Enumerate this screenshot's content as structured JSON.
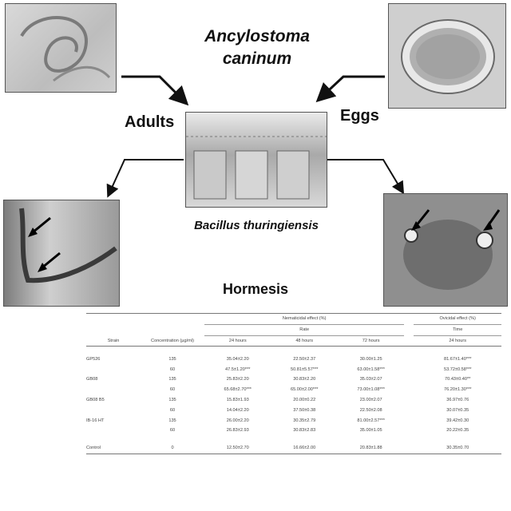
{
  "title": {
    "line1": "Ancylostoma",
    "line2": "caninum"
  },
  "labels": {
    "adults": "Adults",
    "eggs": "Eggs",
    "bacillus": "Bacillus thuringiensis",
    "hormesis": "Hormesis"
  },
  "table": {
    "header_group_nematicidal": "Nematicidal effect (%)",
    "header_group_ovicidal": "Ovicidal effect (%)",
    "header_sub_nematicidal": "Rate",
    "header_sub_ovicidal": "Time",
    "col_strain": "Strain",
    "col_concentration": "Concentration (µg/ml)",
    "col_24": "24 hours",
    "col_48": "48 hours",
    "col_72": "72 hours",
    "col_ovi_24": "24 hours",
    "rows": [
      {
        "strain": "GP526",
        "conc": "135",
        "h24": "35.04±2.20",
        "h48": "22.50±2.37",
        "h72": "30.00±1.25",
        "ovi": "81.67±1.40***"
      },
      {
        "strain": "",
        "conc": "60",
        "h24": "47.5±1.20***",
        "h48": "50.81±5.57***",
        "h72": "63.00±1.58***",
        "ovi": "53.72±0.58***"
      },
      {
        "strain": "GB08",
        "conc": "135",
        "h24": "25.83±2.20",
        "h48": "30.83±2.20",
        "h72": "35.03±2.07",
        "ovi": "70.43±0.40**"
      },
      {
        "strain": "",
        "conc": "60",
        "h24": "65.68±2.70***",
        "h48": "65.00±2.00***",
        "h72": "73.00±1.08***",
        "ovi": "76.20±1.30***"
      },
      {
        "strain": "GB08 B5",
        "conc": "135",
        "h24": "15.83±1.93",
        "h48": "20.00±0.22",
        "h72": "23.00±2.07",
        "ovi": "36.97±0.76"
      },
      {
        "strain": "",
        "conc": "60",
        "h24": "14.04±2.20",
        "h48": "37.50±0.38",
        "h72": "22.50±2.08",
        "ovi": "30.07±0.35"
      },
      {
        "strain": "IB-16 HT",
        "conc": "135",
        "h24": "26.00±2.20",
        "h48": "30.35±2.79",
        "h72": "81.00±2.57***",
        "ovi": "39.42±0.30"
      },
      {
        "strain": "",
        "conc": "60",
        "h24": "26.83±2.93",
        "h48": "30.83±2.83",
        "h72": "35.00±1.05",
        "ovi": "20.22±0.35"
      },
      {
        "strain": "Control",
        "conc": "0",
        "h24": "12.50±2.70",
        "h48": "16.66±2.00",
        "h72": "20.83±1.88",
        "ovi": "30.35±0.70"
      }
    ]
  }
}
